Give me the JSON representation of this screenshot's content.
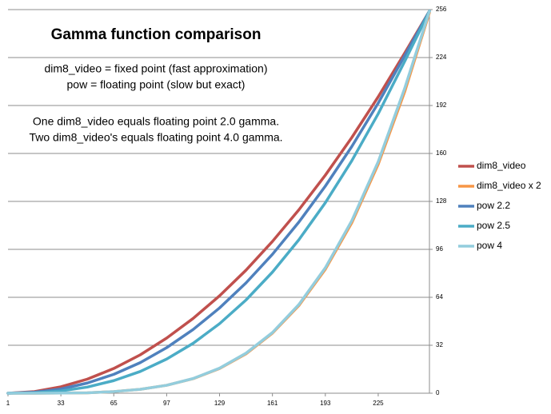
{
  "chart_data": {
    "type": "line",
    "title": "Gamma function comparison",
    "annotations": [
      "dim8_video = fixed point (fast approximation)",
      "pow = floating point (slow but exact)",
      "One dim8_video equals floating point 2.0 gamma.",
      "Two dim8_video's equals floating point 4.0 gamma."
    ],
    "x": [
      1,
      17,
      33,
      49,
      65,
      81,
      97,
      113,
      129,
      145,
      161,
      177,
      193,
      209,
      225,
      241,
      256
    ],
    "xlim": [
      1,
      256
    ],
    "xticks": [
      1,
      33,
      65,
      97,
      129,
      161,
      193,
      225
    ],
    "ylim": [
      0,
      256
    ],
    "yticks": [
      0,
      32,
      64,
      96,
      128,
      160,
      192,
      224,
      256
    ],
    "grid": true,
    "y_axis_side": "right",
    "legend": "right",
    "series": [
      {
        "name": "dim8_video",
        "color": "#c0504d",
        "values": [
          0,
          1.1,
          4.3,
          9.4,
          16.5,
          25.6,
          36.8,
          49.9,
          65.0,
          82.1,
          101.3,
          122.4,
          145.5,
          170.6,
          197.8,
          226.9,
          255
        ]
      },
      {
        "name": "dim8_video x 2",
        "color": "#f79646",
        "values": [
          0,
          0,
          0.1,
          0.3,
          1.1,
          2.6,
          5.3,
          9.7,
          16.5,
          26.3,
          40.1,
          58.5,
          82.7,
          113.7,
          152.8,
          201.1,
          254
        ]
      },
      {
        "name": "pow 2.2",
        "color": "#4f81bd",
        "values": [
          0,
          0.7,
          2.8,
          6.8,
          12.6,
          20.4,
          30.4,
          42.5,
          56.9,
          73.6,
          92.7,
          114.2,
          138.2,
          164.6,
          193.6,
          225.2,
          255
        ]
      },
      {
        "name": "pow 2.5",
        "color": "#4bacc6",
        "values": [
          0,
          0.3,
          1.5,
          4.1,
          8.4,
          14.5,
          22.8,
          33.3,
          46.4,
          62.2,
          80.8,
          102.4,
          127.1,
          155.1,
          186.5,
          221.4,
          255
        ]
      },
      {
        "name": "pow 4",
        "color": "#93cddd",
        "values": [
          0,
          0,
          0.1,
          0.3,
          1.1,
          2.6,
          5.3,
          9.8,
          16.7,
          26.7,
          40.5,
          59.2,
          83.7,
          115.1,
          154.5,
          203.4,
          255
        ]
      }
    ]
  }
}
